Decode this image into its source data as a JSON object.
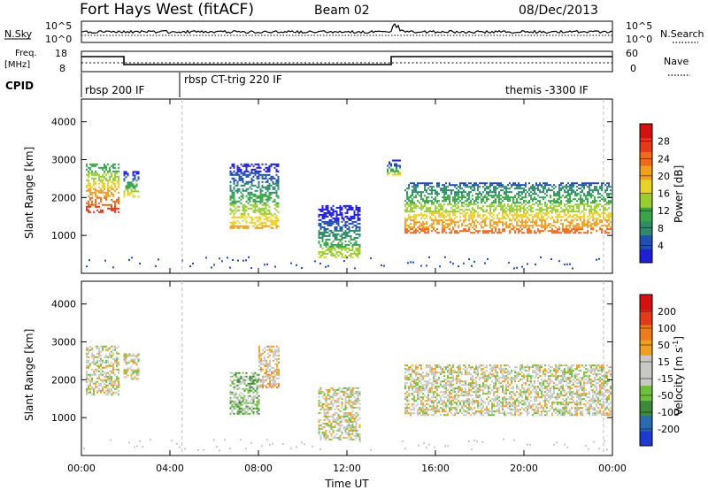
{
  "header": {
    "station": "Fort Hays West (fitACF)",
    "beam": "Beam 02",
    "date": "08/Dec/2013"
  },
  "noise_panel": {
    "left_label": "N.Sky",
    "right_label": "N.Search",
    "left_ticks": [
      "10^5",
      "10^0"
    ],
    "right_ticks": [
      "10^5",
      "10^0"
    ]
  },
  "freq_panel": {
    "left_label_1": "Freq.",
    "left_label_2": "[MHz]",
    "right_label": "Nave",
    "left_ticks": [
      "18",
      "8"
    ],
    "right_ticks": [
      "60",
      "0"
    ],
    "freq_level": 10.9
  },
  "cpid": {
    "label": "CPID",
    "segments": [
      {
        "text": "rbsp 200 IF",
        "start_hour": 0.0
      },
      {
        "text": "rbsp CT-trig 220 IF",
        "start_hour": 4.5
      },
      {
        "text": "themis -3300 IF",
        "start_hour": 20.3
      }
    ]
  },
  "colors": {
    "power_scale": [
      "#1f1fd6",
      "#1f4fb0",
      "#2f8a6a",
      "#3aa44a",
      "#9acd32",
      "#e8d22a",
      "#f0a020",
      "#ef6a1a",
      "#e5391a",
      "#d41010"
    ],
    "velocity_scale": [
      "#1f3bcf",
      "#2a6ab0",
      "#3d8a3d",
      "#6fbf3f",
      "#c8c8c4",
      "#c8c8c4",
      "#f0a020",
      "#ef7b1a",
      "#e23a1a",
      "#d41010"
    ],
    "cbar_ticks_power": [
      "28",
      "24",
      "20",
      "16",
      "12",
      "8",
      "4"
    ],
    "cbar_ticks_velocity": [
      "200",
      "100",
      "50",
      "15",
      "-15",
      "-50",
      "-100",
      "-200"
    ]
  },
  "chart_data": [
    {
      "type": "heatmap",
      "title": "",
      "xlabel": "Time UT",
      "ylabel": "Slant Range [km]",
      "colorbar_label": "Power [dB]",
      "xlim": [
        0,
        24
      ],
      "ylim": [
        0,
        4600
      ],
      "x_ticks": [
        "00:00",
        "04:00",
        "08:00",
        "12:00",
        "16:00",
        "20:00",
        "00:00"
      ],
      "y_ticks": [
        1000,
        2000,
        3000,
        4000
      ],
      "colorbar_range": [
        0,
        30
      ],
      "echo_regions": [
        {
          "t0": 0.2,
          "t1": 1.7,
          "r0": 1600,
          "r1": 2900,
          "value": 18
        },
        {
          "t0": 1.9,
          "t1": 2.6,
          "r0": 2000,
          "r1": 2700,
          "value": 10
        },
        {
          "t0": 6.7,
          "t1": 8.9,
          "r0": 1200,
          "r1": 2900,
          "value": 10
        },
        {
          "t0": 10.7,
          "t1": 12.6,
          "r0": 400,
          "r1": 1800,
          "value": 7
        },
        {
          "t0": 13.8,
          "t1": 14.4,
          "r0": 2600,
          "r1": 3000,
          "value": 8
        },
        {
          "t0": 14.6,
          "t1": 23.9,
          "r0": 1050,
          "r1": 2400,
          "value": 14
        }
      ]
    },
    {
      "type": "heatmap",
      "title": "",
      "xlabel": "Time UT",
      "ylabel": "Slant Range [km]",
      "colorbar_label": "Velocity [m s^-1]",
      "xlim": [
        0,
        24
      ],
      "ylim": [
        0,
        4600
      ],
      "x_ticks": [
        "00:00",
        "04:00",
        "08:00",
        "12:00",
        "16:00",
        "20:00",
        "00:00"
      ],
      "y_ticks": [
        1000,
        2000,
        3000,
        4000
      ],
      "colorbar_range": [
        -250,
        250
      ],
      "echo_regions": [
        {
          "t0": 0.2,
          "t1": 1.7,
          "r0": 1600,
          "r1": 2900,
          "value": 0
        },
        {
          "t0": 1.9,
          "t1": 2.6,
          "r0": 2000,
          "r1": 2700,
          "value": 0
        },
        {
          "t0": 6.7,
          "t1": 8.0,
          "r0": 1100,
          "r1": 2200,
          "value": -60
        },
        {
          "t0": 8.0,
          "t1": 8.9,
          "r0": 1800,
          "r1": 2900,
          "value": 40
        },
        {
          "t0": 10.7,
          "t1": 12.6,
          "r0": 400,
          "r1": 1800,
          "value": 0
        },
        {
          "t0": 14.6,
          "t1": 23.9,
          "r0": 1050,
          "r1": 2400,
          "value": 0
        }
      ]
    }
  ],
  "axis_texts": {
    "x_title": "Time UT",
    "y_title": "Slant Range [km]",
    "power_title": "Power [dB]",
    "velocity_title": "Velocity [m s",
    "velocity_exp": "-1",
    "velocity_close": "]"
  }
}
